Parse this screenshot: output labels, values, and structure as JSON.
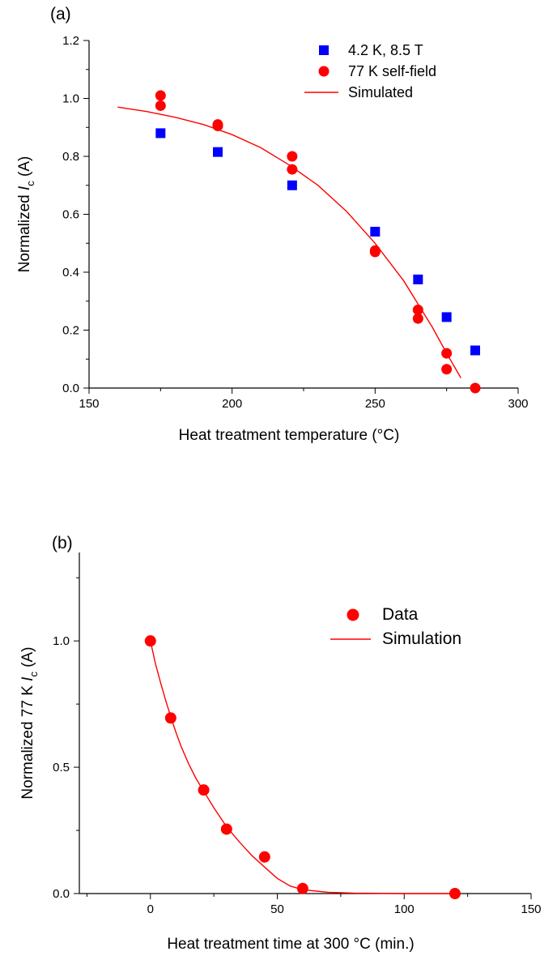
{
  "chart_data": [
    {
      "type": "scatter",
      "panel_label": "(a)",
      "xlabel": "Heat treatment temperature (°C)",
      "ylabel": {
        "prefix": "Normalized ",
        "italic": "I",
        "sub": "c",
        "suffix": " (A)"
      },
      "xlim": [
        150,
        300
      ],
      "ylim": [
        0.0,
        1.2
      ],
      "x_ticks": [
        "150",
        "200",
        "250",
        "300"
      ],
      "y_ticks": [
        "0.0",
        "0.2",
        "0.4",
        "0.6",
        "0.8",
        "1.0",
        "1.2"
      ],
      "grid": false,
      "legend_position": "top-right",
      "series": [
        {
          "name": "4.2 K, 8.5 T",
          "marker": "square",
          "color": "#0000ff",
          "points": [
            [
              175,
              0.88
            ],
            [
              195,
              0.815
            ],
            [
              221,
              0.7
            ],
            [
              250,
              0.54
            ],
            [
              265,
              0.375
            ],
            [
              275,
              0.245
            ],
            [
              285,
              0.13
            ]
          ]
        },
        {
          "name": "77 K self-field",
          "marker": "circle",
          "color": "#ff0000",
          "points": [
            [
              175,
              1.01
            ],
            [
              175,
              0.975
            ],
            [
              195,
              0.91
            ],
            [
              195,
              0.905
            ],
            [
              221,
              0.8
            ],
            [
              221,
              0.755
            ],
            [
              250,
              0.475
            ],
            [
              250,
              0.47
            ],
            [
              265,
              0.27
            ],
            [
              265,
              0.24
            ],
            [
              275,
              0.12
            ],
            [
              275,
              0.065
            ],
            [
              285,
              0.0
            ]
          ]
        },
        {
          "name": "Simulated",
          "marker": "line",
          "color": "#ff0000",
          "points": [
            [
              160,
              0.97
            ],
            [
              170,
              0.955
            ],
            [
              180,
              0.935
            ],
            [
              190,
              0.91
            ],
            [
              200,
              0.875
            ],
            [
              210,
              0.83
            ],
            [
              220,
              0.77
            ],
            [
              230,
              0.7
            ],
            [
              240,
              0.61
            ],
            [
              250,
              0.5
            ],
            [
              260,
              0.37
            ],
            [
              270,
              0.21
            ],
            [
              275,
              0.12
            ],
            [
              280,
              0.035
            ]
          ]
        }
      ]
    },
    {
      "type": "scatter",
      "panel_label": "(b)",
      "xlabel": "Heat treatment time at 300 °C (min.)",
      "ylabel": {
        "prefix": "Normalized 77 K ",
        "italic": "I",
        "sub": "c",
        "suffix": " (A)"
      },
      "xlim": [
        -28,
        150
      ],
      "ylim": [
        0.0,
        1.35
      ],
      "x_ticks": [
        "0",
        "50",
        "100",
        "150"
      ],
      "y_ticks": [
        "0.0",
        "0.5",
        "1.0"
      ],
      "grid": false,
      "legend_position": "top-right",
      "series": [
        {
          "name": "Data",
          "marker": "circle",
          "color": "#ff0000",
          "points": [
            [
              0,
              1.0
            ],
            [
              8,
              0.695
            ],
            [
              21,
              0.41
            ],
            [
              30,
              0.255
            ],
            [
              45,
              0.145
            ],
            [
              60,
              0.02
            ],
            [
              120,
              0.0
            ]
          ]
        },
        {
          "name": "Simulation",
          "marker": "line",
          "color": "#ff0000",
          "points": [
            [
              0,
              1.0
            ],
            [
              2,
              0.91
            ],
            [
              4,
              0.835
            ],
            [
              6,
              0.765
            ],
            [
              8,
              0.7
            ],
            [
              10,
              0.64
            ],
            [
              12,
              0.585
            ],
            [
              15,
              0.515
            ],
            [
              18,
              0.455
            ],
            [
              21,
              0.405
            ],
            [
              25,
              0.34
            ],
            [
              30,
              0.265
            ],
            [
              35,
              0.205
            ],
            [
              40,
              0.15
            ],
            [
              45,
              0.105
            ],
            [
              50,
              0.06
            ],
            [
              55,
              0.03
            ],
            [
              60,
              0.015
            ],
            [
              70,
              0.005
            ],
            [
              80,
              0.002
            ],
            [
              100,
              0.0
            ],
            [
              120,
              0.0
            ]
          ]
        }
      ]
    }
  ]
}
